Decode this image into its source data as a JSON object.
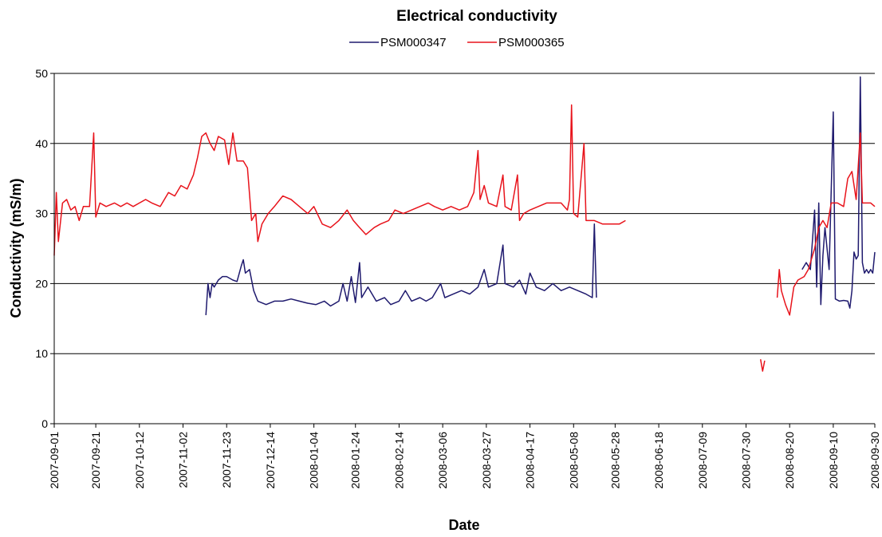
{
  "chart_data": {
    "type": "line",
    "title": "Electrical conductivity",
    "xlabel": "Date",
    "ylabel": "Conductivity (mS/m)",
    "ylim": [
      0,
      50
    ],
    "yticks": [
      0,
      10,
      20,
      30,
      40,
      50
    ],
    "xlim": [
      "2007-09-01",
      "2008-09-30"
    ],
    "xticks": [
      "2007-09-01",
      "2007-09-21",
      "2007-10-12",
      "2007-11-02",
      "2007-11-23",
      "2007-12-14",
      "2008-01-04",
      "2008-01-24",
      "2008-02-14",
      "2008-03-06",
      "2008-03-27",
      "2008-04-17",
      "2008-05-08",
      "2008-05-28",
      "2008-06-18",
      "2008-07-09",
      "2008-07-30",
      "2008-08-20",
      "2008-09-10",
      "2008-09-30"
    ],
    "grid": true,
    "legend_position": "top",
    "series": [
      {
        "name": "PSM000347",
        "color": "#1f1a6e",
        "segments": [
          [
            [
              "2007-11-13",
              15.5
            ],
            [
              "2007-11-14",
              20
            ],
            [
              "2007-11-15",
              18
            ],
            [
              "2007-11-16",
              20
            ],
            [
              "2007-11-17",
              19.5
            ],
            [
              "2007-11-19",
              20.5
            ],
            [
              "2007-11-21",
              21
            ],
            [
              "2007-11-23",
              21
            ],
            [
              "2007-11-26",
              20.5
            ],
            [
              "2007-11-28",
              20.3
            ],
            [
              "2007-11-30",
              22.5
            ],
            [
              "2007-12-01",
              23.4
            ],
            [
              "2007-12-02",
              21.5
            ],
            [
              "2007-12-04",
              22
            ],
            [
              "2007-12-06",
              19
            ],
            [
              "2007-12-08",
              17.5
            ],
            [
              "2007-12-12",
              17
            ],
            [
              "2007-12-16",
              17.5
            ],
            [
              "2007-12-20",
              17.5
            ],
            [
              "2007-12-24",
              17.8
            ],
            [
              "2007-12-28",
              17.5
            ],
            [
              "2008-01-01",
              17.2
            ],
            [
              "2008-01-05",
              17
            ],
            [
              "2008-01-09",
              17.5
            ],
            [
              "2008-01-12",
              16.8
            ],
            [
              "2008-01-16",
              17.5
            ],
            [
              "2008-01-18",
              20
            ],
            [
              "2008-01-20",
              17.5
            ],
            [
              "2008-01-22",
              21
            ],
            [
              "2008-01-24",
              17.3
            ],
            [
              "2008-01-26",
              23
            ],
            [
              "2008-01-27",
              18
            ],
            [
              "2008-01-30",
              19.5
            ],
            [
              "2008-02-03",
              17.5
            ],
            [
              "2008-02-07",
              18
            ],
            [
              "2008-02-10",
              17
            ],
            [
              "2008-02-14",
              17.5
            ],
            [
              "2008-02-17",
              19
            ],
            [
              "2008-02-20",
              17.5
            ],
            [
              "2008-02-24",
              18
            ],
            [
              "2008-02-27",
              17.5
            ],
            [
              "2008-03-01",
              18
            ],
            [
              "2008-03-05",
              20
            ],
            [
              "2008-03-07",
              18
            ],
            [
              "2008-03-11",
              18.5
            ],
            [
              "2008-03-15",
              19
            ],
            [
              "2008-03-19",
              18.5
            ],
            [
              "2008-03-23",
              19.5
            ],
            [
              "2008-03-26",
              22
            ],
            [
              "2008-03-28",
              19.5
            ],
            [
              "2008-04-01",
              20
            ],
            [
              "2008-04-04",
              25.5
            ],
            [
              "2008-04-05",
              20
            ],
            [
              "2008-04-09",
              19.5
            ],
            [
              "2008-04-12",
              20.5
            ],
            [
              "2008-04-15",
              18.5
            ],
            [
              "2008-04-17",
              21.5
            ],
            [
              "2008-04-20",
              19.5
            ],
            [
              "2008-04-24",
              19
            ],
            [
              "2008-04-28",
              20
            ],
            [
              "2008-05-02",
              19
            ],
            [
              "2008-05-06",
              19.5
            ],
            [
              "2008-05-10",
              19
            ],
            [
              "2008-05-14",
              18.5
            ],
            [
              "2008-05-17",
              18
            ],
            [
              "2008-05-18",
              28.5
            ],
            [
              "2008-05-19",
              18
            ]
          ],
          [
            [
              "2008-08-26",
              22
            ],
            [
              "2008-08-28",
              23
            ],
            [
              "2008-08-30",
              22
            ],
            [
              "2008-09-01",
              30.5
            ],
            [
              "2008-09-02",
              19.5
            ],
            [
              "2008-09-03",
              31.5
            ],
            [
              "2008-09-04",
              17
            ],
            [
              "2008-09-05",
              24
            ],
            [
              "2008-09-06",
              28
            ],
            [
              "2008-09-08",
              22
            ],
            [
              "2008-09-10",
              44.5
            ],
            [
              "2008-09-11",
              17.8
            ],
            [
              "2008-09-13",
              17.5
            ],
            [
              "2008-09-15",
              17.6
            ],
            [
              "2008-09-17",
              17.5
            ],
            [
              "2008-09-18",
              16.5
            ],
            [
              "2008-09-19",
              19
            ],
            [
              "2008-09-20",
              24.5
            ],
            [
              "2008-09-21",
              23.5
            ],
            [
              "2008-09-22",
              24
            ],
            [
              "2008-09-23",
              49.5
            ],
            [
              "2008-09-24",
              23
            ],
            [
              "2008-09-25",
              21.5
            ],
            [
              "2008-09-26",
              22
            ],
            [
              "2008-09-27",
              21.5
            ],
            [
              "2008-09-28",
              22
            ],
            [
              "2008-09-29",
              21.5
            ],
            [
              "2008-09-30",
              24.5
            ]
          ]
        ]
      },
      {
        "name": "PSM000365",
        "color": "#e8131b",
        "segments": [
          [
            [
              "2007-09-01",
              24
            ],
            [
              "2007-09-02",
              33
            ],
            [
              "2007-09-03",
              26
            ],
            [
              "2007-09-05",
              31.5
            ],
            [
              "2007-09-07",
              32
            ],
            [
              "2007-09-09",
              30.5
            ],
            [
              "2007-09-11",
              31
            ],
            [
              "2007-09-13",
              29
            ],
            [
              "2007-09-15",
              31
            ],
            [
              "2007-09-18",
              31
            ],
            [
              "2007-09-20",
              41.5
            ],
            [
              "2007-09-21",
              29.5
            ],
            [
              "2007-09-23",
              31.5
            ],
            [
              "2007-09-26",
              31
            ],
            [
              "2007-09-30",
              31.5
            ],
            [
              "2007-10-03",
              31
            ],
            [
              "2007-10-06",
              31.5
            ],
            [
              "2007-10-09",
              31
            ],
            [
              "2007-10-12",
              31.5
            ],
            [
              "2007-10-15",
              32
            ],
            [
              "2007-10-18",
              31.5
            ],
            [
              "2007-10-22",
              31
            ],
            [
              "2007-10-26",
              33
            ],
            [
              "2007-10-29",
              32.5
            ],
            [
              "2007-11-01",
              34
            ],
            [
              "2007-11-04",
              33.5
            ],
            [
              "2007-11-07",
              35.5
            ],
            [
              "2007-11-09",
              38
            ],
            [
              "2007-11-11",
              41
            ],
            [
              "2007-11-13",
              41.5
            ],
            [
              "2007-11-15",
              40
            ],
            [
              "2007-11-17",
              39
            ],
            [
              "2007-11-19",
              41
            ],
            [
              "2007-11-22",
              40.5
            ],
            [
              "2007-11-24",
              37
            ],
            [
              "2007-11-26",
              41.5
            ],
            [
              "2007-11-28",
              37.5
            ],
            [
              "2007-12-01",
              37.5
            ],
            [
              "2007-12-03",
              36.5
            ],
            [
              "2007-12-05",
              29
            ],
            [
              "2007-12-07",
              30
            ],
            [
              "2007-12-08",
              26
            ],
            [
              "2007-12-10",
              28.5
            ],
            [
              "2007-12-13",
              30
            ],
            [
              "2007-12-16",
              31
            ],
            [
              "2007-12-20",
              32.5
            ],
            [
              "2007-12-24",
              32
            ],
            [
              "2007-12-28",
              31
            ],
            [
              "2008-01-01",
              30
            ],
            [
              "2008-01-04",
              31
            ],
            [
              "2008-01-08",
              28.5
            ],
            [
              "2008-01-12",
              28
            ],
            [
              "2008-01-16",
              29
            ],
            [
              "2008-01-20",
              30.5
            ],
            [
              "2008-01-23",
              29
            ],
            [
              "2008-01-26",
              28
            ],
            [
              "2008-01-29",
              27
            ],
            [
              "2008-02-02",
              28
            ],
            [
              "2008-02-05",
              28.5
            ],
            [
              "2008-02-09",
              29
            ],
            [
              "2008-02-12",
              30.5
            ],
            [
              "2008-02-16",
              30
            ],
            [
              "2008-02-20",
              30.5
            ],
            [
              "2008-02-24",
              31
            ],
            [
              "2008-02-28",
              31.5
            ],
            [
              "2008-03-02",
              31
            ],
            [
              "2008-03-06",
              30.5
            ],
            [
              "2008-03-10",
              31
            ],
            [
              "2008-03-14",
              30.5
            ],
            [
              "2008-03-18",
              31
            ],
            [
              "2008-03-21",
              33
            ],
            [
              "2008-03-23",
              39
            ],
            [
              "2008-03-24",
              32
            ],
            [
              "2008-03-26",
              34
            ],
            [
              "2008-03-28",
              31.5
            ],
            [
              "2008-04-01",
              31
            ],
            [
              "2008-04-04",
              35.5
            ],
            [
              "2008-04-05",
              31
            ],
            [
              "2008-04-08",
              30.5
            ],
            [
              "2008-04-11",
              35.5
            ],
            [
              "2008-04-12",
              29
            ],
            [
              "2008-04-14",
              30
            ],
            [
              "2008-04-17",
              30.5
            ],
            [
              "2008-04-21",
              31
            ],
            [
              "2008-04-25",
              31.5
            ],
            [
              "2008-04-29",
              31.5
            ],
            [
              "2008-05-02",
              31.5
            ],
            [
              "2008-05-05",
              30.5
            ],
            [
              "2008-05-06",
              32
            ],
            [
              "2008-05-07",
              45.5
            ],
            [
              "2008-05-08",
              30
            ],
            [
              "2008-05-10",
              29.5
            ],
            [
              "2008-05-13",
              40
            ],
            [
              "2008-05-14",
              29
            ],
            [
              "2008-05-18",
              29
            ],
            [
              "2008-05-22",
              28.5
            ],
            [
              "2008-05-26",
              28.5
            ],
            [
              "2008-05-30",
              28.5
            ],
            [
              "2008-06-02",
              29
            ]
          ],
          [
            [
              "2008-08-06",
              9.2
            ],
            [
              "2008-08-07",
              7.5
            ],
            [
              "2008-08-08",
              9
            ]
          ],
          [
            [
              "2008-08-14",
              18
            ],
            [
              "2008-08-15",
              22
            ],
            [
              "2008-08-16",
              19
            ],
            [
              "2008-08-18",
              17
            ],
            [
              "2008-08-20",
              15.5
            ],
            [
              "2008-08-22",
              19.5
            ],
            [
              "2008-08-24",
              20.5
            ],
            [
              "2008-08-27",
              21
            ],
            [
              "2008-08-29",
              22
            ],
            [
              "2008-09-01",
              25
            ],
            [
              "2008-09-03",
              28
            ],
            [
              "2008-09-05",
              29
            ],
            [
              "2008-09-07",
              28
            ],
            [
              "2008-09-09",
              31.5
            ],
            [
              "2008-09-12",
              31.5
            ],
            [
              "2008-09-15",
              31
            ],
            [
              "2008-09-17",
              35
            ],
            [
              "2008-09-19",
              36
            ],
            [
              "2008-09-21",
              32
            ],
            [
              "2008-09-23",
              41.5
            ],
            [
              "2008-09-24",
              31.5
            ],
            [
              "2008-09-26",
              31.5
            ],
            [
              "2008-09-28",
              31.5
            ],
            [
              "2008-09-30",
              31
            ]
          ]
        ]
      }
    ]
  }
}
